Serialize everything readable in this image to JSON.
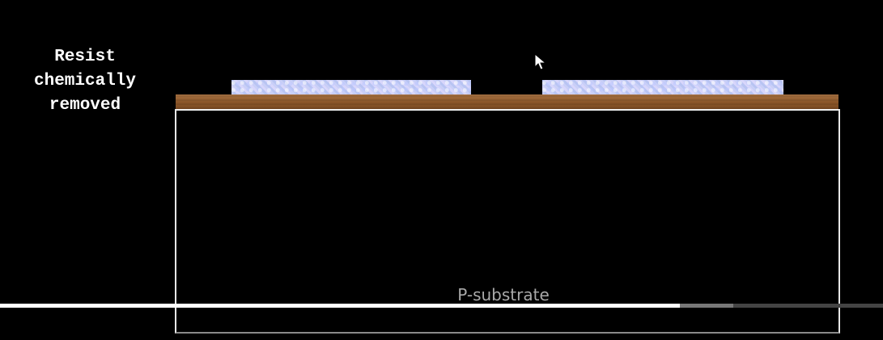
{
  "step_label": {
    "line1": "Resist",
    "line2": "chemically",
    "line3": "removed"
  },
  "substrate": {
    "label": "P-substrate"
  },
  "colors": {
    "background": "#000000",
    "resist": "#c3cbf5",
    "oxide": "#8a5528",
    "substrate_border": "#e8e8e8",
    "substrate_label": "#a9a9a9"
  },
  "video_progress": {
    "played_fraction": 0.77,
    "buffered_fraction": 0.83
  },
  "icons": {
    "cursor": "mouse-pointer-icon"
  }
}
